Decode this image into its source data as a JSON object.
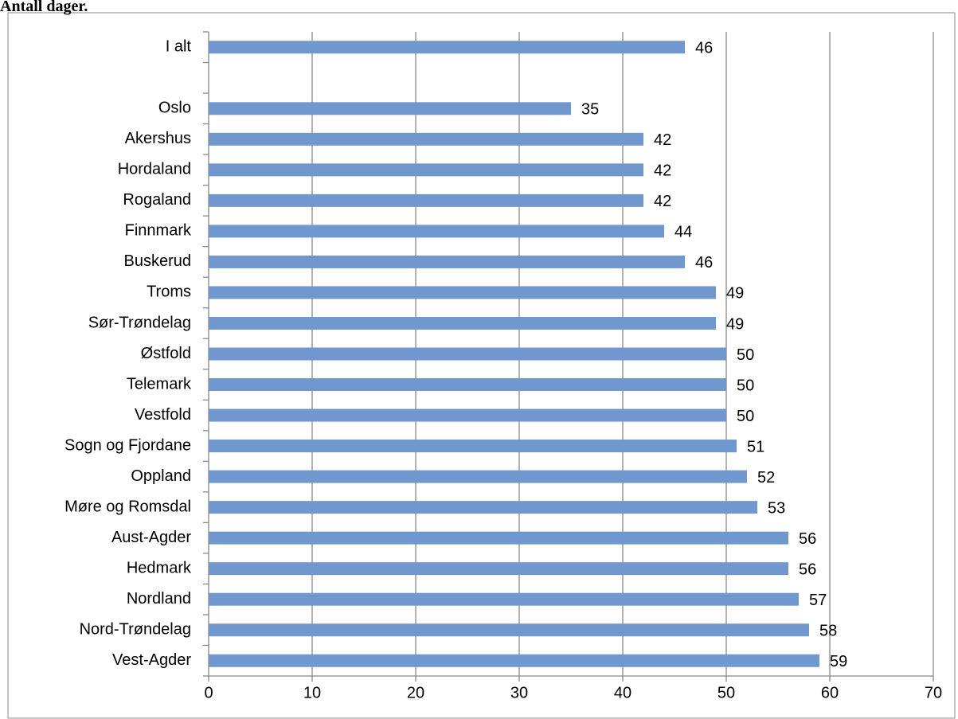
{
  "chart_data": {
    "type": "bar",
    "orientation": "horizontal",
    "title": "Antall dager.",
    "categories": [
      "I alt",
      null,
      "Oslo",
      "Akershus",
      "Hordaland",
      "Rogaland",
      "Finnmark",
      "Buskerud",
      "Troms",
      "Sør-Trøndelag",
      "Østfold",
      "Telemark",
      "Vestfold",
      "Sogn og Fjordane",
      "Oppland",
      "Møre og Romsdal",
      "Aust-Agder",
      "Hedmark",
      "Nordland",
      "Nord-Trøndelag",
      "Vest-Agder"
    ],
    "values": [
      46,
      null,
      35,
      42,
      42,
      42,
      44,
      46,
      49,
      49,
      50,
      50,
      50,
      51,
      52,
      53,
      56,
      56,
      57,
      58,
      59
    ],
    "color": "#7098cf",
    "xlim": [
      0,
      70
    ],
    "xticks": [
      0,
      10,
      20,
      30,
      40,
      50,
      60,
      70
    ],
    "grid": true,
    "data_labels": true
  }
}
